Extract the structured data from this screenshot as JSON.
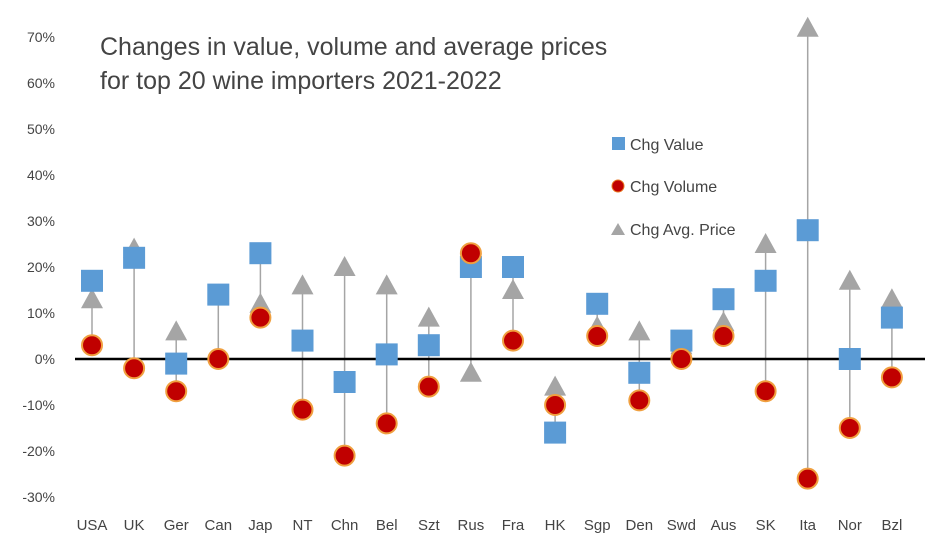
{
  "chart_data": {
    "type": "scatter",
    "title_lines": [
      "Changes in value, volume and average prices",
      "for top 20 wine importers 2021-2022"
    ],
    "categories": [
      "USA",
      "UK",
      "Ger",
      "Can",
      "Jap",
      "NT",
      "Chn",
      "Bel",
      "Szt",
      "Rus",
      "Fra",
      "HK",
      "Sgp",
      "Den",
      "Swd",
      "Aus",
      "SK",
      "Ita",
      "Nor",
      "Bzl"
    ],
    "series": [
      {
        "name": "Chg Value",
        "marker": "square",
        "color": "#5b9bd5",
        "values": [
          17,
          22,
          -1,
          14,
          23,
          4,
          -5,
          1,
          3,
          20,
          20,
          -16,
          12,
          -3,
          4,
          13,
          17,
          28,
          0,
          9
        ]
      },
      {
        "name": "Chg Volume",
        "marker": "circle",
        "color": "#c00000",
        "values": [
          3,
          -2,
          -7,
          0,
          9,
          -11,
          -21,
          -14,
          -6,
          23,
          4,
          -10,
          5,
          -9,
          0,
          5,
          -7,
          -26,
          -15,
          -4
        ]
      },
      {
        "name": "Chg Avg. Price",
        "marker": "triangle",
        "color": "#a5a5a5",
        "values": [
          13,
          24,
          6,
          14,
          12,
          16,
          20,
          16,
          9,
          -3,
          15,
          -6,
          7,
          6,
          3,
          8,
          25,
          72,
          17,
          13
        ]
      }
    ],
    "ylim": [
      -30,
      70
    ],
    "yticks": [
      "-30%",
      "-20%",
      "-10%",
      "0%",
      "10%",
      "20%",
      "30%",
      "40%",
      "50%",
      "60%",
      "70%"
    ],
    "ytick_values": [
      -30,
      -20,
      -10,
      0,
      10,
      20,
      30,
      40,
      50,
      60,
      70
    ],
    "grid": false,
    "high_low_lines": true,
    "legend_position": "right"
  }
}
